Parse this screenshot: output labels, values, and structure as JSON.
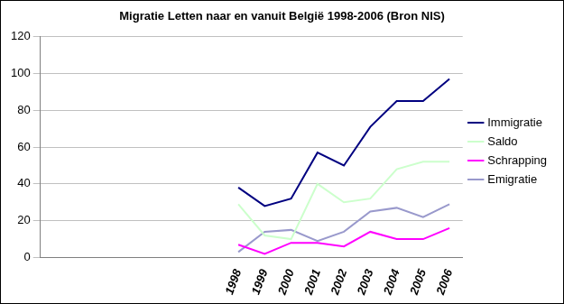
{
  "chart_data": {
    "type": "line",
    "title": "Migratie Letten naar en vanuit België 1998-2006 (Bron NIS)",
    "categories": [
      null,
      null,
      null,
      null,
      null,
      null,
      null,
      "1998",
      "1999",
      "2000",
      "2001",
      "2002",
      "2003",
      "2004",
      "2005",
      "2006"
    ],
    "series": [
      {
        "name": "Immigratie",
        "color": "#000080",
        "values": [
          null,
          null,
          null,
          null,
          null,
          null,
          null,
          38,
          28,
          32,
          57,
          50,
          71,
          85,
          85,
          97
        ]
      },
      {
        "name": "Saldo",
        "color": "#ccffcc",
        "values": [
          null,
          null,
          null,
          null,
          null,
          null,
          null,
          29,
          12,
          10,
          40,
          30,
          32,
          48,
          52,
          52
        ]
      },
      {
        "name": "Schrapping",
        "color": "#ff00ff",
        "values": [
          null,
          null,
          null,
          null,
          null,
          null,
          null,
          7,
          2,
          8,
          8,
          6,
          14,
          10,
          10,
          16
        ]
      },
      {
        "name": "Emigratie",
        "color": "#9999cc",
        "values": [
          null,
          null,
          null,
          null,
          null,
          null,
          null,
          3,
          14,
          15,
          9,
          14,
          25,
          27,
          22,
          29
        ]
      }
    ],
    "ylim": [
      0,
      120
    ],
    "yticks": [
      0,
      20,
      40,
      60,
      80,
      100,
      120
    ],
    "grid": true,
    "legend": "right"
  }
}
